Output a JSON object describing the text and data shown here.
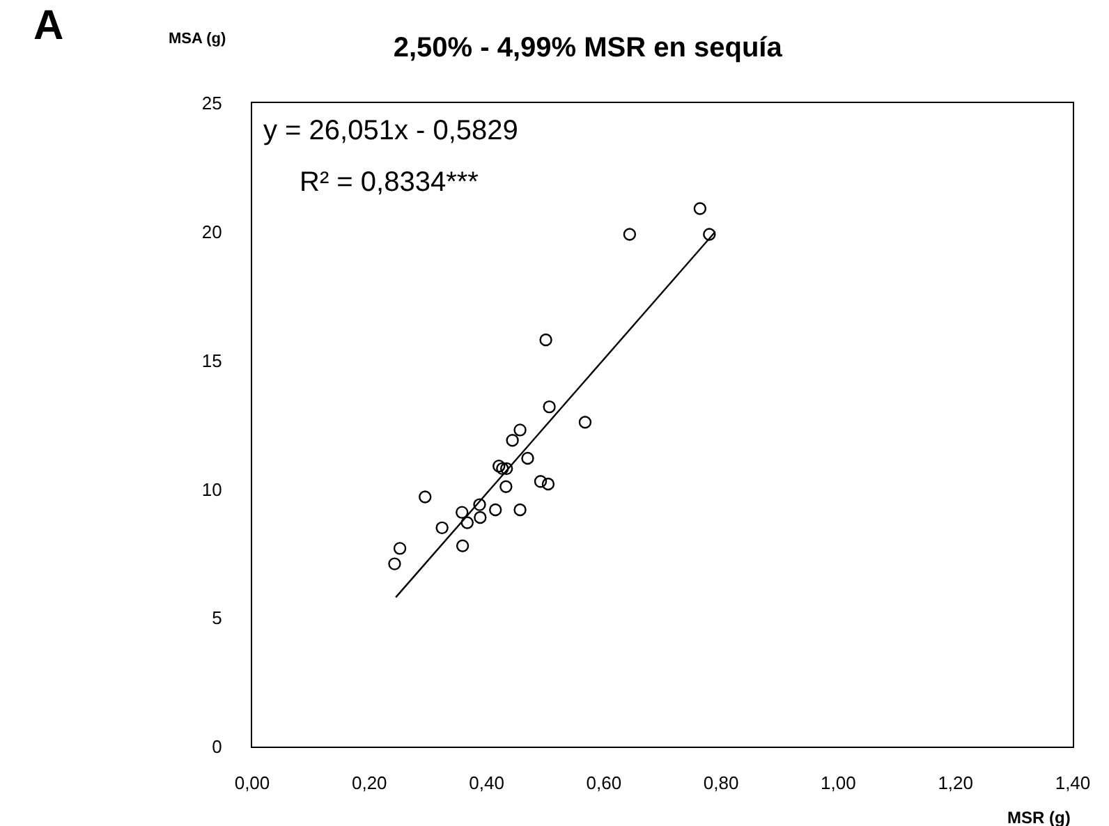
{
  "chart_data": {
    "type": "scatter",
    "title": "2,50% - 4,99% MSR en sequía",
    "xlabel": "MSR (g)",
    "ylabel": "MSA (g)",
    "annotations": [
      "A",
      "y = 26,051x - 0,5829",
      "R² = 0,8334***"
    ],
    "series": [
      {
        "color": "#000000",
        "marker": "circle",
        "x": [
          0.764,
          0.644,
          0.78,
          0.501,
          0.507,
          0.568,
          0.457,
          0.444,
          0.47,
          0.421,
          0.434,
          0.427,
          0.433,
          0.492,
          0.505,
          0.295,
          0.388,
          0.358,
          0.415,
          0.457,
          0.367,
          0.389,
          0.324,
          0.252,
          0.243,
          0.359
        ],
        "values": [
          20.9,
          19.9,
          19.9,
          15.8,
          13.2,
          12.6,
          12.3,
          11.9,
          11.2,
          10.9,
          10.8,
          10.8,
          10.1,
          10.3,
          10.2,
          9.7,
          9.4,
          9.1,
          9.2,
          9.2,
          8.7,
          8.9,
          8.5,
          7.7,
          7.1,
          7.8
        ]
      },
      {
        "type": "line",
        "color": "#000000",
        "marker": "none",
        "line_style": "solid",
        "x": [
          0.245,
          0.79
        ],
        "values": [
          5.8,
          20.0
        ]
      }
    ],
    "xlim": [
      0,
      1.4
    ],
    "ylim": [
      0,
      25
    ],
    "xticks": [
      {
        "value": 0,
        "label": "0,00"
      },
      {
        "value": 0.2,
        "label": "0,20"
      },
      {
        "value": 0.4,
        "label": "0,40"
      },
      {
        "value": 0.6,
        "label": "0,60"
      },
      {
        "value": 0.8,
        "label": "0,80"
      },
      {
        "value": 1.0,
        "label": "1,00"
      },
      {
        "value": 1.2,
        "label": "1,20"
      },
      {
        "value": 1.4,
        "label": "1,40"
      }
    ],
    "yticks": [
      0,
      5,
      10,
      15,
      20,
      25
    ],
    "grid": false
  }
}
